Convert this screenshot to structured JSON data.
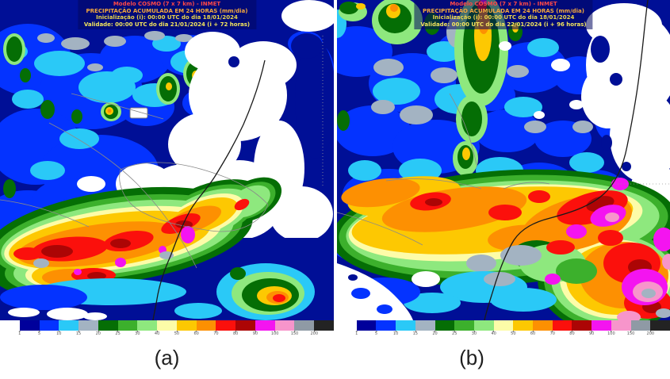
{
  "panels": [
    {
      "caption": "(a)",
      "title_lines": [
        "Modelo COSMO (7 x 7 km) - INMET",
        "PRECIPITAÇÃO ACUMULADA EM 24 HORAS (mm/dia)",
        "Inicialização (i): 00:00 UTC do dia 18/01/2024",
        "Validade: 00:00 UTC do dia 21/01/2024 (i + 72 horas)"
      ]
    },
    {
      "caption": "(b)",
      "title_lines": [
        "Modelo COSMO (7 x 7 km) - INMET",
        "PRECIPITAÇÃO ACUMULADA EM 24 HORAS (mm/dia)",
        "Inicialização (i): 00:00 UTC do dia 18/01/2024",
        "Validade: 00:00 UTC do dia 22/01/2024 (i + 96 horas)"
      ]
    }
  ],
  "title_colors": {
    "line1": "#ff4848",
    "line2": "#f5a83c",
    "line3": "#e9d44a",
    "line4": "#f3e55c"
  },
  "colorbar": {
    "unit": "mm/dia",
    "colors": [
      "#ffffff",
      "#00009b",
      "#0433ff",
      "#2ac9f7",
      "#a3b3c2",
      "#056e05",
      "#3cb02c",
      "#8ee87e",
      "#fdfca8",
      "#fdc802",
      "#fd9002",
      "#fb100c",
      "#ac0505",
      "#f414f0",
      "#f795cb",
      "#8f9aa5",
      "#232323"
    ],
    "tick_labels": [
      "1",
      "5",
      "10",
      "15",
      "20",
      "25",
      "30",
      "40",
      "50",
      "60",
      "70",
      "80",
      "90",
      "100",
      "150",
      "200"
    ]
  }
}
